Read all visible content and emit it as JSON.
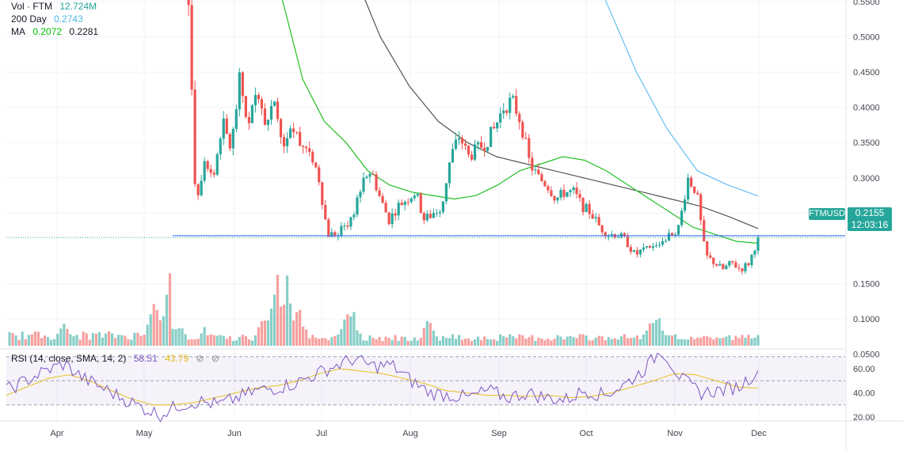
{
  "header": {
    "volume": {
      "label": "Vol · FTM",
      "value": "12.724M",
      "value_color": "#26a69a"
    },
    "sma200": {
      "label": "200 Day",
      "value": "0.2743",
      "color": "#4fb8e6"
    },
    "ma": {
      "label": "MA",
      "value1": "0.2072",
      "value2": "0.2281",
      "color": "#00c000"
    }
  },
  "rsi_header": {
    "label": "RSI (14, close, SMA, 14, 2)",
    "value": "58.51",
    "ma_value": "43.79",
    "icons": [
      "eye-off-icon",
      "eye-off-icon"
    ]
  },
  "last_price": {
    "symbol": "FTMUSD",
    "price": "0.2155",
    "countdown": "12:03:16"
  },
  "colors": {
    "up": "#26a69a",
    "down": "#ef5350",
    "sma50": "#22c022",
    "sma100": "#555555",
    "sma200": "#64c0f0",
    "rsi": "#7e57c2",
    "rsi_ma": "#e8c020",
    "hline": "#2962ff"
  },
  "chart_data": {
    "type": "candlestick",
    "symbol": "FTMUSD",
    "x_axis_labels": [
      "Apr",
      "May",
      "Jun",
      "Jul",
      "Aug",
      "Sep",
      "Oct",
      "Nov",
      "Dec"
    ],
    "price_axis": {
      "ticks": [
        "0.5500",
        "0.5000",
        "0.4500",
        "0.4000",
        "0.3500",
        "0.3000",
        "0.2500",
        "0.1500",
        "0.1000",
        "0.0500"
      ],
      "range": [
        0.0,
        0.56
      ]
    },
    "rsi_axis": {
      "ticks": [
        "60.00",
        "40.00",
        "20.00"
      ],
      "range": [
        15,
        80
      ],
      "band": [
        30,
        70
      ]
    },
    "horizontal_line": 0.218,
    "price_path": [
      0.56,
      0.6,
      0.62,
      0.26,
      0.33,
      0.3,
      0.38,
      0.34,
      0.44,
      0.37,
      0.43,
      0.38,
      0.4,
      0.34,
      0.37,
      0.35,
      0.34,
      0.3,
      0.22,
      0.22,
      0.23,
      0.25,
      0.3,
      0.31,
      0.27,
      0.24,
      0.26,
      0.27,
      0.28,
      0.24,
      0.25,
      0.26,
      0.33,
      0.36,
      0.33,
      0.34,
      0.35,
      0.37,
      0.4,
      0.41,
      0.38,
      0.32,
      0.3,
      0.29,
      0.27,
      0.28,
      0.28,
      0.26,
      0.25,
      0.23,
      0.22,
      0.22,
      0.21,
      0.19,
      0.2,
      0.2,
      0.21,
      0.22,
      0.23,
      0.3,
      0.28,
      0.19,
      0.18,
      0.17,
      0.18,
      0.17,
      0.18,
      0.2155
    ],
    "sma50": [
      0.82,
      0.7,
      0.56,
      0.44,
      0.38,
      0.35,
      0.31,
      0.29,
      0.28,
      0.275,
      0.27,
      0.275,
      0.29,
      0.31,
      0.32,
      0.33,
      0.325,
      0.31,
      0.29,
      0.27,
      0.25,
      0.23,
      0.22,
      0.21,
      0.2072
    ],
    "sma100": [
      0.9,
      0.75,
      0.6,
      0.5,
      0.43,
      0.38,
      0.35,
      0.33,
      0.32,
      0.31,
      0.3,
      0.29,
      0.28,
      0.27,
      0.26,
      0.245,
      0.2281
    ],
    "sma200": [
      0.85,
      0.75,
      0.66,
      0.55,
      0.45,
      0.37,
      0.31,
      0.29,
      0.2743
    ],
    "volume_scale_max": 0.155,
    "volume_spikes": [
      {
        "t": 0.06,
        "v": 0.038
      },
      {
        "t": 0.16,
        "v": 0.075
      },
      {
        "t": 0.18,
        "v": 0.155
      },
      {
        "t": 0.2,
        "v": 0.12
      },
      {
        "t": 0.22,
        "v": 0.082
      },
      {
        "t": 0.3,
        "v": 0.07
      },
      {
        "t": 0.31,
        "v": 0.075
      },
      {
        "t": 0.44,
        "v": 0.06
      },
      {
        "t": 0.82,
        "v": 0.065
      },
      {
        "t": 0.83,
        "v": 0.055
      }
    ],
    "rsi_path": [
      42,
      50,
      58,
      64,
      52,
      44,
      36,
      28,
      22,
      30,
      33,
      30,
      36,
      42,
      44,
      48,
      55,
      62,
      68,
      62,
      63,
      50,
      40,
      38,
      36,
      42,
      36,
      40,
      36,
      34,
      42,
      38,
      46,
      58,
      76,
      52,
      40,
      42,
      45,
      58.51
    ],
    "rsi_ma_path": [
      38,
      45,
      52,
      55,
      50,
      42,
      35,
      30,
      30,
      32,
      36,
      40,
      44,
      46,
      50,
      56,
      60,
      58,
      56,
      52,
      48,
      42,
      40,
      38,
      38,
      37,
      38,
      36,
      37,
      40,
      45,
      50,
      56,
      55,
      50,
      45,
      43.79
    ]
  }
}
